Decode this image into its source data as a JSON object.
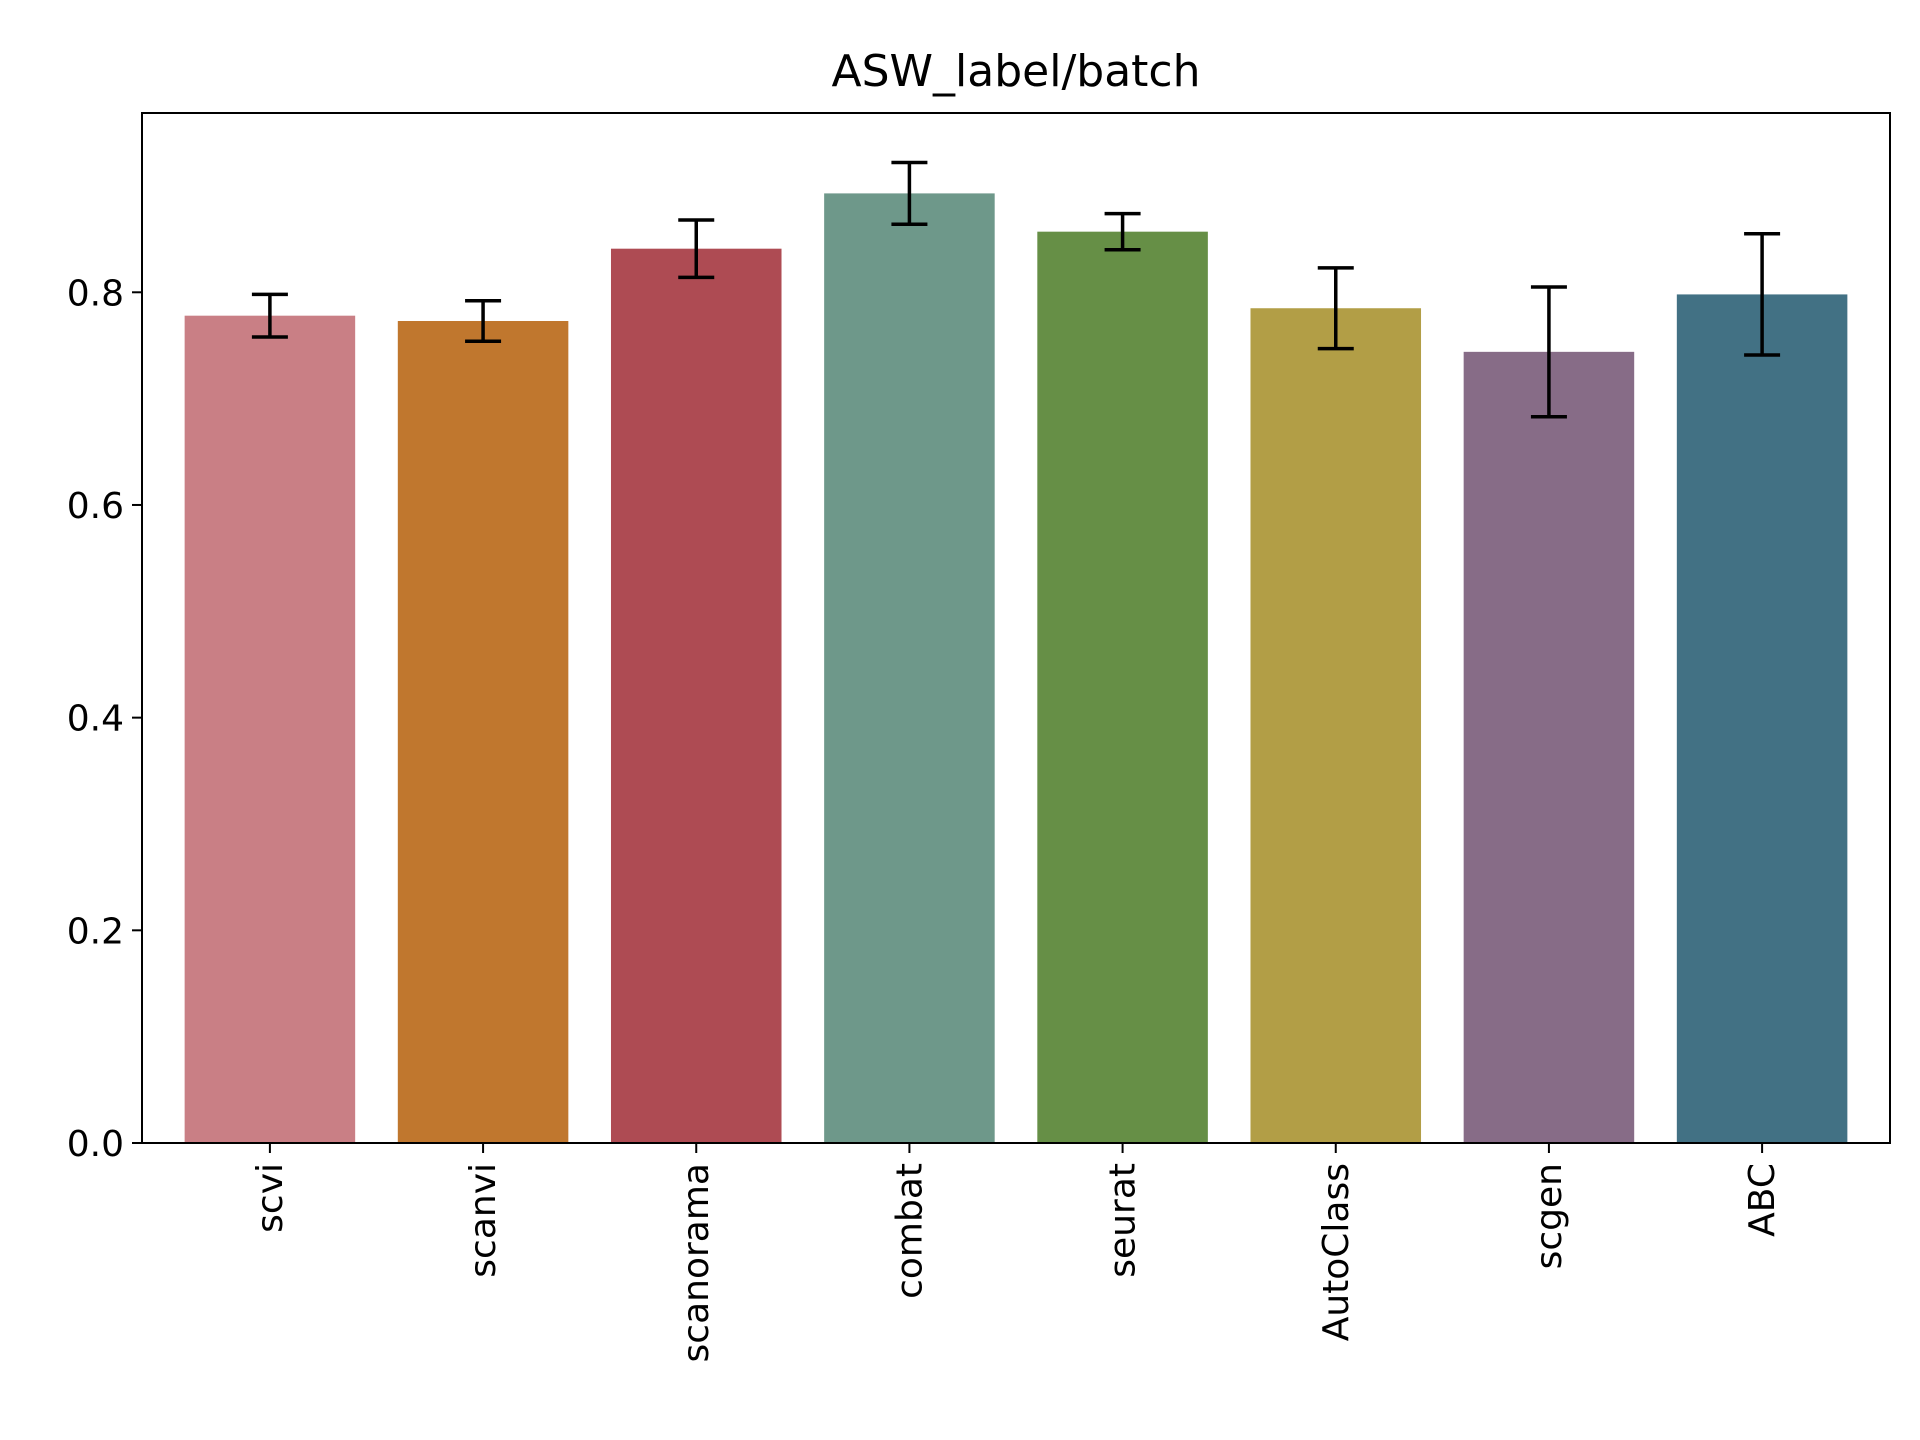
{
  "chart_data": {
    "type": "bar",
    "title": "ASW_label/batch",
    "xlabel": "",
    "ylabel": "",
    "categories": [
      "scvi",
      "scanvi",
      "scanorama",
      "combat",
      "seurat",
      "AutoClass",
      "scgen",
      "ABC"
    ],
    "values": [
      0.778,
      0.773,
      0.841,
      0.893,
      0.857,
      0.785,
      0.744,
      0.798
    ],
    "errors": [
      0.02,
      0.019,
      0.027,
      0.029,
      0.017,
      0.038,
      0.061,
      0.057
    ],
    "colors": [
      "#c97f85",
      "#c0772e",
      "#ae4b53",
      "#6e988a",
      "#668f46",
      "#b29e46",
      "#876c87",
      "#427184"
    ],
    "ylim": [
      0,
      0.9686
    ],
    "yticks": [
      0.0,
      0.2,
      0.4,
      0.6,
      0.8
    ],
    "ytick_labels": [
      "0.0",
      "0.2",
      "0.4",
      "0.6",
      "0.8"
    ],
    "grid": false,
    "legend": "none"
  }
}
